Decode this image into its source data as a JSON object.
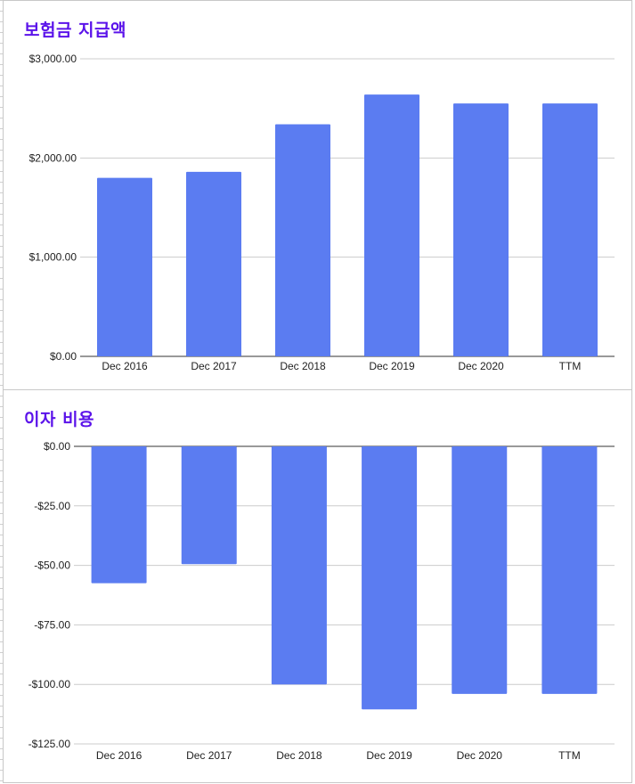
{
  "chart_data": [
    {
      "type": "bar",
      "title": "보험금 지급액",
      "categories": [
        "Dec 2016",
        "Dec 2017",
        "Dec 2018",
        "Dec 2019",
        "Dec 2020",
        "TTM"
      ],
      "values": [
        1800,
        1860,
        2340,
        2640,
        2550,
        2550
      ],
      "ylim": [
        0,
        3000
      ],
      "yticks": [
        0,
        1000,
        2000,
        3000
      ],
      "ytick_labels": [
        "$0.00",
        "$1,000.00",
        "$2,000.00",
        "$3,000.00"
      ],
      "xlabel": "",
      "ylabel": "",
      "grid": true,
      "bar_color": "#5b7cf1"
    },
    {
      "type": "bar",
      "title": "이자 비용",
      "categories": [
        "Dec 2016",
        "Dec 2017",
        "Dec 2018",
        "Dec 2019",
        "Dec 2020",
        "TTM"
      ],
      "values": [
        -57.5,
        -49.5,
        -100,
        -110.5,
        -104,
        -104
      ],
      "ylim": [
        -125,
        0
      ],
      "yticks": [
        0,
        -25,
        -50,
        -75,
        -100,
        -125
      ],
      "ytick_labels": [
        "$0.00",
        "-$25.00",
        "-$50.00",
        "-$75.00",
        "-$100.00",
        "-$125.00"
      ],
      "xlabel": "",
      "ylabel": "",
      "grid": true,
      "bar_color": "#5b7cf1"
    }
  ]
}
